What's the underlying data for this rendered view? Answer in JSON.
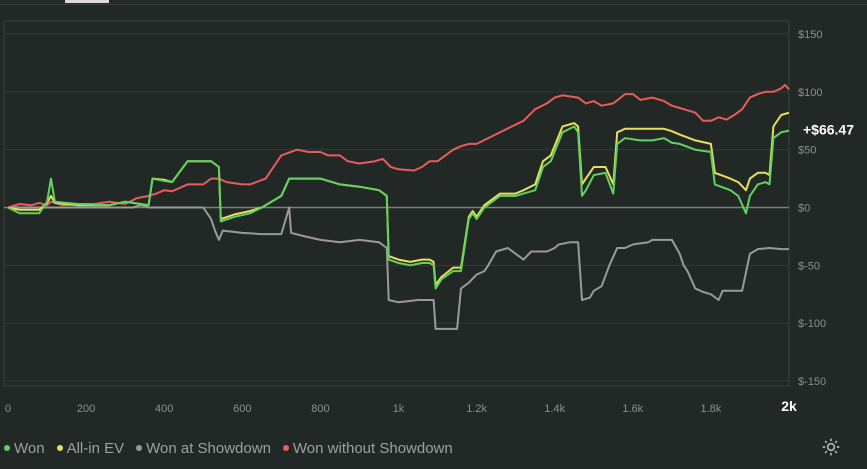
{
  "chart_data": {
    "type": "line",
    "xlim": [
      0,
      2000
    ],
    "ylim": [
      -150,
      150
    ],
    "x_ticks": [
      0,
      200,
      400,
      600,
      800,
      1000,
      1200,
      1400,
      1600,
      1800,
      2000
    ],
    "x_tick_labels": [
      "0",
      "200",
      "400",
      "600",
      "800",
      "1k",
      "1.2k",
      "1.4k",
      "1.6k",
      "1.8k",
      "2k"
    ],
    "y_ticks": [
      150,
      100,
      50,
      0,
      -50,
      -100,
      -150
    ],
    "y_tick_labels": [
      "$150",
      "$100",
      "$50",
      "$0",
      "$-50",
      "$-100",
      "$-150"
    ],
    "end_value_label": "+$66.47",
    "grid": true,
    "legend_position": "bottom-left",
    "series": [
      {
        "name": "Won",
        "color": "#5fd35f",
        "points": [
          [
            0,
            0
          ],
          [
            30,
            -5
          ],
          [
            80,
            -5
          ],
          [
            100,
            5
          ],
          [
            110,
            25
          ],
          [
            120,
            5
          ],
          [
            180,
            3
          ],
          [
            260,
            2
          ],
          [
            300,
            5
          ],
          [
            360,
            2
          ],
          [
            370,
            25
          ],
          [
            400,
            23
          ],
          [
            420,
            22
          ],
          [
            460,
            40
          ],
          [
            520,
            40
          ],
          [
            540,
            35
          ],
          [
            545,
            -12
          ],
          [
            580,
            -8
          ],
          [
            620,
            -5
          ],
          [
            650,
            0
          ],
          [
            700,
            10
          ],
          [
            720,
            25
          ],
          [
            740,
            25
          ],
          [
            760,
            25
          ],
          [
            800,
            25
          ],
          [
            850,
            20
          ],
          [
            900,
            18
          ],
          [
            950,
            15
          ],
          [
            970,
            10
          ],
          [
            975,
            -45
          ],
          [
            1000,
            -48
          ],
          [
            1030,
            -50
          ],
          [
            1060,
            -48
          ],
          [
            1080,
            -48
          ],
          [
            1090,
            -50
          ],
          [
            1095,
            -70
          ],
          [
            1110,
            -62
          ],
          [
            1140,
            -55
          ],
          [
            1160,
            -55
          ],
          [
            1180,
            -10
          ],
          [
            1190,
            -5
          ],
          [
            1200,
            -10
          ],
          [
            1220,
            0
          ],
          [
            1260,
            10
          ],
          [
            1300,
            10
          ],
          [
            1320,
            12
          ],
          [
            1350,
            15
          ],
          [
            1370,
            35
          ],
          [
            1390,
            40
          ],
          [
            1420,
            65
          ],
          [
            1450,
            70
          ],
          [
            1460,
            65
          ],
          [
            1470,
            10
          ],
          [
            1480,
            15
          ],
          [
            1500,
            28
          ],
          [
            1530,
            30
          ],
          [
            1550,
            12
          ],
          [
            1560,
            55
          ],
          [
            1580,
            60
          ],
          [
            1620,
            58
          ],
          [
            1650,
            58
          ],
          [
            1680,
            60
          ],
          [
            1700,
            56
          ],
          [
            1720,
            55
          ],
          [
            1760,
            50
          ],
          [
            1800,
            48
          ],
          [
            1810,
            20
          ],
          [
            1850,
            15
          ],
          [
            1870,
            10
          ],
          [
            1890,
            -5
          ],
          [
            1900,
            10
          ],
          [
            1920,
            20
          ],
          [
            1940,
            22
          ],
          [
            1950,
            20
          ],
          [
            1960,
            60
          ],
          [
            1980,
            65
          ],
          [
            2000,
            66.47
          ]
        ]
      },
      {
        "name": "All-in EV",
        "color": "#e8e05a",
        "points": [
          [
            0,
            0
          ],
          [
            30,
            -2
          ],
          [
            80,
            -2
          ],
          [
            100,
            4
          ],
          [
            110,
            10
          ],
          [
            120,
            4
          ],
          [
            180,
            2
          ],
          [
            260,
            2
          ],
          [
            300,
            5
          ],
          [
            360,
            2
          ],
          [
            370,
            25
          ],
          [
            400,
            24
          ],
          [
            420,
            22
          ],
          [
            460,
            40
          ],
          [
            520,
            40
          ],
          [
            540,
            35
          ],
          [
            545,
            -10
          ],
          [
            580,
            -6
          ],
          [
            620,
            -3
          ],
          [
            650,
            0
          ],
          [
            700,
            10
          ],
          [
            720,
            25
          ],
          [
            740,
            25
          ],
          [
            760,
            25
          ],
          [
            800,
            25
          ],
          [
            850,
            20
          ],
          [
            900,
            18
          ],
          [
            950,
            15
          ],
          [
            970,
            10
          ],
          [
            975,
            -42
          ],
          [
            1000,
            -45
          ],
          [
            1030,
            -47
          ],
          [
            1060,
            -45
          ],
          [
            1080,
            -45
          ],
          [
            1090,
            -47
          ],
          [
            1095,
            -67
          ],
          [
            1110,
            -60
          ],
          [
            1140,
            -52
          ],
          [
            1160,
            -52
          ],
          [
            1180,
            -8
          ],
          [
            1190,
            -3
          ],
          [
            1200,
            -8
          ],
          [
            1220,
            2
          ],
          [
            1260,
            12
          ],
          [
            1300,
            12
          ],
          [
            1320,
            15
          ],
          [
            1350,
            20
          ],
          [
            1370,
            40
          ],
          [
            1390,
            45
          ],
          [
            1420,
            70
          ],
          [
            1450,
            73
          ],
          [
            1460,
            70
          ],
          [
            1470,
            20
          ],
          [
            1480,
            25
          ],
          [
            1500,
            35
          ],
          [
            1530,
            35
          ],
          [
            1550,
            20
          ],
          [
            1560,
            65
          ],
          [
            1580,
            68
          ],
          [
            1620,
            68
          ],
          [
            1650,
            68
          ],
          [
            1680,
            68
          ],
          [
            1700,
            66
          ],
          [
            1720,
            63
          ],
          [
            1760,
            58
          ],
          [
            1800,
            55
          ],
          [
            1810,
            30
          ],
          [
            1850,
            25
          ],
          [
            1870,
            22
          ],
          [
            1890,
            15
          ],
          [
            1900,
            25
          ],
          [
            1920,
            30
          ],
          [
            1940,
            30
          ],
          [
            1950,
            28
          ],
          [
            1960,
            70
          ],
          [
            1980,
            80
          ],
          [
            2000,
            82
          ]
        ]
      },
      {
        "name": "Won at Showdown",
        "color": "#9a9a9a",
        "points": [
          [
            0,
            0
          ],
          [
            60,
            0
          ],
          [
            120,
            0
          ],
          [
            320,
            0
          ],
          [
            340,
            2
          ],
          [
            360,
            0
          ],
          [
            500,
            0
          ],
          [
            520,
            -10
          ],
          [
            530,
            -20
          ],
          [
            540,
            -28
          ],
          [
            550,
            -20
          ],
          [
            600,
            -22
          ],
          [
            650,
            -23
          ],
          [
            700,
            -23
          ],
          [
            720,
            0
          ],
          [
            725,
            -22
          ],
          [
            760,
            -25
          ],
          [
            800,
            -28
          ],
          [
            850,
            -30
          ],
          [
            900,
            -28
          ],
          [
            950,
            -30
          ],
          [
            970,
            -35
          ],
          [
            975,
            -80
          ],
          [
            1000,
            -82
          ],
          [
            1050,
            -80
          ],
          [
            1060,
            -80
          ],
          [
            1090,
            -80
          ],
          [
            1095,
            -105
          ],
          [
            1120,
            -105
          ],
          [
            1150,
            -105
          ],
          [
            1160,
            -70
          ],
          [
            1180,
            -65
          ],
          [
            1200,
            -58
          ],
          [
            1220,
            -55
          ],
          [
            1230,
            -50
          ],
          [
            1250,
            -38
          ],
          [
            1280,
            -35
          ],
          [
            1300,
            -40
          ],
          [
            1320,
            -45
          ],
          [
            1340,
            -38
          ],
          [
            1380,
            -38
          ],
          [
            1400,
            -35
          ],
          [
            1410,
            -32
          ],
          [
            1440,
            -30
          ],
          [
            1460,
            -30
          ],
          [
            1470,
            -80
          ],
          [
            1490,
            -78
          ],
          [
            1500,
            -72
          ],
          [
            1520,
            -68
          ],
          [
            1540,
            -50
          ],
          [
            1560,
            -35
          ],
          [
            1580,
            -35
          ],
          [
            1600,
            -32
          ],
          [
            1640,
            -30
          ],
          [
            1650,
            -28
          ],
          [
            1680,
            -28
          ],
          [
            1700,
            -28
          ],
          [
            1720,
            -40
          ],
          [
            1730,
            -50
          ],
          [
            1740,
            -55
          ],
          [
            1760,
            -70
          ],
          [
            1780,
            -73
          ],
          [
            1800,
            -75
          ],
          [
            1820,
            -80
          ],
          [
            1830,
            -72
          ],
          [
            1860,
            -72
          ],
          [
            1880,
            -72
          ],
          [
            1900,
            -40
          ],
          [
            1920,
            -36
          ],
          [
            1950,
            -35
          ],
          [
            1980,
            -36
          ],
          [
            2000,
            -36
          ]
        ]
      },
      {
        "name": "Won without Showdown",
        "color": "#e85c5c",
        "points": [
          [
            0,
            0
          ],
          [
            30,
            3
          ],
          [
            60,
            2
          ],
          [
            80,
            4
          ],
          [
            100,
            2
          ],
          [
            110,
            5
          ],
          [
            140,
            2
          ],
          [
            180,
            3
          ],
          [
            220,
            3
          ],
          [
            260,
            5
          ],
          [
            300,
            3
          ],
          [
            330,
            8
          ],
          [
            360,
            10
          ],
          [
            380,
            12
          ],
          [
            400,
            15
          ],
          [
            420,
            14
          ],
          [
            460,
            20
          ],
          [
            500,
            20
          ],
          [
            520,
            25
          ],
          [
            540,
            25
          ],
          [
            560,
            22
          ],
          [
            600,
            20
          ],
          [
            620,
            20
          ],
          [
            660,
            25
          ],
          [
            680,
            35
          ],
          [
            700,
            45
          ],
          [
            740,
            50
          ],
          [
            770,
            48
          ],
          [
            800,
            48
          ],
          [
            820,
            45
          ],
          [
            850,
            45
          ],
          [
            870,
            40
          ],
          [
            900,
            38
          ],
          [
            940,
            40
          ],
          [
            960,
            42
          ],
          [
            980,
            35
          ],
          [
            1000,
            33
          ],
          [
            1040,
            32
          ],
          [
            1060,
            35
          ],
          [
            1080,
            40
          ],
          [
            1100,
            40
          ],
          [
            1120,
            45
          ],
          [
            1140,
            50
          ],
          [
            1160,
            53
          ],
          [
            1180,
            55
          ],
          [
            1200,
            55
          ],
          [
            1230,
            60
          ],
          [
            1260,
            65
          ],
          [
            1290,
            70
          ],
          [
            1320,
            75
          ],
          [
            1350,
            85
          ],
          [
            1380,
            90
          ],
          [
            1400,
            95
          ],
          [
            1420,
            97
          ],
          [
            1440,
            96
          ],
          [
            1460,
            95
          ],
          [
            1480,
            90
          ],
          [
            1500,
            92
          ],
          [
            1520,
            88
          ],
          [
            1550,
            90
          ],
          [
            1580,
            98
          ],
          [
            1600,
            98
          ],
          [
            1620,
            93
          ],
          [
            1650,
            95
          ],
          [
            1680,
            92
          ],
          [
            1700,
            88
          ],
          [
            1720,
            86
          ],
          [
            1740,
            84
          ],
          [
            1760,
            82
          ],
          [
            1780,
            75
          ],
          [
            1800,
            75
          ],
          [
            1820,
            78
          ],
          [
            1840,
            76
          ],
          [
            1860,
            80
          ],
          [
            1880,
            85
          ],
          [
            1900,
            95
          ],
          [
            1920,
            98
          ],
          [
            1940,
            100
          ],
          [
            1960,
            100
          ],
          [
            1980,
            103
          ],
          [
            1990,
            106
          ],
          [
            2000,
            102
          ]
        ]
      }
    ]
  },
  "footer": {
    "settings_icon": "gear-icon"
  }
}
